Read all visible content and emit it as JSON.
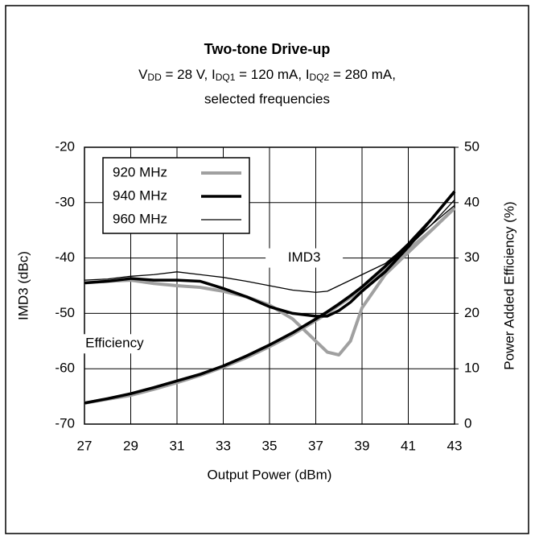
{
  "chart_data": {
    "type": "line",
    "title": "Two-tone Drive-up",
    "subtitle": [
      {
        "text": "V"
      },
      {
        "text": "DD",
        "sub": true
      },
      {
        "text": " = 28 V, I"
      },
      {
        "text": "DQ1",
        "sub": true
      },
      {
        "text": " = 120 mA, I"
      },
      {
        "text": "DQ2",
        "sub": true
      },
      {
        "text": " = 280 mA,"
      }
    ],
    "subtitle2": "selected frequencies",
    "xlabel": "Output Power (dBm)",
    "ylabel": "IMD3 (dBc)",
    "y2label": "Power Added Efficiency (%)",
    "annotations": [
      {
        "text": "IMD3",
        "x": 36.5,
        "y": -40
      },
      {
        "text": "Efficiency",
        "x": 28.3,
        "y": -55.5
      }
    ],
    "x": [
      27,
      28,
      29,
      30,
      31,
      32,
      33,
      34,
      35,
      36,
      37,
      37.5,
      38,
      38.5,
      39,
      40,
      41,
      42,
      43
    ],
    "xlim": [
      27,
      43
    ],
    "xticks": [
      27,
      29,
      31,
      33,
      35,
      37,
      39,
      41,
      43
    ],
    "ylim": [
      -70,
      -20
    ],
    "yticks": [
      -70,
      -60,
      -50,
      -40,
      -30,
      -20
    ],
    "y2lim": [
      0,
      50
    ],
    "y2ticks": [
      0,
      10,
      20,
      30,
      40,
      50
    ],
    "grid": true,
    "series": [
      {
        "name": "920 MHz",
        "color": "#a0a0a0",
        "width": 4,
        "imd3": [
          -44.5,
          -44.2,
          -44.0,
          -44.6,
          -45.0,
          -45.3,
          -46.0,
          -47.0,
          -48.5,
          -51.0,
          -55.0,
          -57.0,
          -57.5,
          -55.0,
          -49.0,
          -43.0,
          -39.0,
          -35.0,
          -31.0
        ],
        "efficiency": [
          3.8,
          4.5,
          5.2,
          6.3,
          7.5,
          8.8,
          10.3,
          12.0,
          14.0,
          16.2,
          18.7,
          20.0,
          21.5,
          22.9,
          24.4,
          28.0,
          31.5,
          35.0,
          39.0
        ]
      },
      {
        "name": "940 MHz",
        "color": "#000000",
        "width": 3.5,
        "imd3": [
          -44.5,
          -44.2,
          -43.7,
          -44.0,
          -44.0,
          -44.2,
          -45.5,
          -47.0,
          -48.8,
          -50.0,
          -50.5,
          -50.5,
          -49.5,
          -48.0,
          -46.0,
          -42.5,
          -38.0,
          -33.0,
          -28.0
        ],
        "efficiency": [
          3.8,
          4.6,
          5.5,
          6.6,
          7.8,
          9.0,
          10.5,
          12.3,
          14.3,
          16.5,
          19.0,
          20.3,
          21.7,
          23.2,
          24.8,
          28.5,
          32.5,
          37.0,
          42.0
        ]
      },
      {
        "name": "960 MHz",
        "color": "#000000",
        "width": 1.3,
        "imd3": [
          -44.0,
          -43.8,
          -43.3,
          -43.0,
          -42.5,
          -43.0,
          -43.5,
          -44.2,
          -45.0,
          -45.8,
          -46.2,
          -46.0,
          -45.0,
          -44.0,
          -43.0,
          -41.0,
          -37.5,
          -34.0,
          -30.5
        ],
        "efficiency": [
          3.9,
          4.7,
          5.6,
          6.7,
          7.9,
          9.1,
          10.6,
          12.3,
          14.2,
          16.4,
          18.8,
          20.1,
          21.5,
          23.0,
          24.6,
          28.3,
          32.0,
          36.0,
          40.5
        ]
      }
    ],
    "legend": "upper left"
  }
}
